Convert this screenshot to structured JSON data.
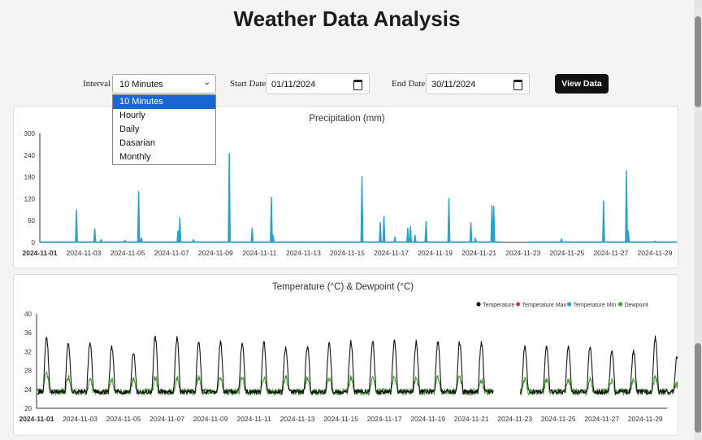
{
  "page": {
    "title": "Weather Data Analysis"
  },
  "controls": {
    "interval_label": "Interval",
    "interval_value": "10 Minutes",
    "interval_options": [
      "10 Minutes",
      "Hourly",
      "Daily",
      "Dasarian",
      "Monthly"
    ],
    "start_label": "Start Date",
    "start_value": "01/11/2024",
    "end_label": "End Date",
    "end_value": "30/11/2024",
    "view_button": "View Data"
  },
  "chart_data": [
    {
      "type": "bar",
      "title": "Precipitation (mm)",
      "color": "#2aa3c8",
      "ylim": [
        0,
        300
      ],
      "yticks": [
        0,
        60,
        120,
        180,
        240,
        300
      ],
      "xticks": [
        "2024-11-01",
        "2024-11-03",
        "2024-11-05",
        "2024-11-07",
        "2024-11-09",
        "2024-11-11",
        "2024-11-13",
        "2024-11-15",
        "2024-11-17",
        "2024-11-19",
        "2024-11-21",
        "2024-11-23",
        "2024-11-25",
        "2024-11-27",
        "2024-11-29"
      ],
      "x_start": "2024-11-01",
      "x_end": "2024-11-30",
      "gap": [
        "2024-11-22T00:00",
        "2024-11-23T06:00"
      ],
      "spikes": [
        {
          "t": "2024-11-02T16:00",
          "v": 90
        },
        {
          "t": "2024-11-03T12:00",
          "v": 38
        },
        {
          "t": "2024-11-03T19:00",
          "v": 8
        },
        {
          "t": "2024-11-04T21:00",
          "v": 6
        },
        {
          "t": "2024-11-05T12:00",
          "v": 140
        },
        {
          "t": "2024-11-05T15:00",
          "v": 12
        },
        {
          "t": "2024-11-07T07:00",
          "v": 32
        },
        {
          "t": "2024-11-07T09:00",
          "v": 68
        },
        {
          "t": "2024-11-08T00:00",
          "v": 8
        },
        {
          "t": "2024-11-09T15:00",
          "v": 245
        },
        {
          "t": "2024-11-10T16:00",
          "v": 40
        },
        {
          "t": "2024-11-11T13:00",
          "v": 125
        },
        {
          "t": "2024-11-11T15:00",
          "v": 20
        },
        {
          "t": "2024-11-15T16:00",
          "v": 182
        },
        {
          "t": "2024-11-16T12:00",
          "v": 55
        },
        {
          "t": "2024-11-16T16:00",
          "v": 72
        },
        {
          "t": "2024-11-17T04:00",
          "v": 15
        },
        {
          "t": "2024-11-17T18:00",
          "v": 40
        },
        {
          "t": "2024-11-17T21:00",
          "v": 45
        },
        {
          "t": "2024-11-18T02:00",
          "v": 20
        },
        {
          "t": "2024-11-18T14:00",
          "v": 58
        },
        {
          "t": "2024-11-19T15:00",
          "v": 122
        },
        {
          "t": "2024-11-20T15:00",
          "v": 55
        },
        {
          "t": "2024-11-20T20:00",
          "v": 12
        },
        {
          "t": "2024-11-21T14:00",
          "v": 102
        },
        {
          "t": "2024-11-21T16:00",
          "v": 100
        },
        {
          "t": "2024-11-24T18:00",
          "v": 10
        },
        {
          "t": "2024-11-26T16:00",
          "v": 115
        },
        {
          "t": "2024-11-27T17:00",
          "v": 198
        },
        {
          "t": "2024-11-27T19:00",
          "v": 32
        },
        {
          "t": "2024-11-29T00:00",
          "v": 4
        }
      ]
    },
    {
      "type": "line",
      "title": "Temperature (°C) & Dewpoint (°C)",
      "ylim": [
        20,
        40
      ],
      "yticks": [
        20,
        24,
        28,
        32,
        36,
        40
      ],
      "xticks": [
        "2024-11-01",
        "2024-11-03",
        "2024-11-05",
        "2024-11-07",
        "2024-11-09",
        "2024-11-11",
        "2024-11-13",
        "2024-11-15",
        "2024-11-17",
        "2024-11-19",
        "2024-11-21",
        "2024-11-23",
        "2024-11-25",
        "2024-11-27",
        "2024-11-29"
      ],
      "x_start": "2024-11-01",
      "x_end": "2024-11-30",
      "gap": [
        "2024-11-22T00:00",
        "2024-11-23T06:00"
      ],
      "legend_position": "top-right",
      "series": [
        {
          "name": "Temperature",
          "color": "#111111",
          "night_value": 23.5,
          "daily_max": [
            35,
            34,
            34,
            33,
            32,
            35,
            35,
            34,
            34,
            34,
            34,
            33,
            33,
            34,
            34,
            34,
            34,
            34,
            34,
            34,
            34,
            0,
            33,
            33,
            33,
            33,
            32,
            32,
            35,
            31
          ]
        },
        {
          "name": "Temperature Max",
          "color": "#e23a3a"
        },
        {
          "name": "Temperature Min",
          "color": "#2a9fd6"
        },
        {
          "name": "Dewpoint",
          "color": "#4c9a3c",
          "night_value": 23.5,
          "daily_max": [
            27.5,
            26.5,
            26,
            26,
            26,
            26.5,
            26.5,
            26.5,
            26.5,
            26.5,
            26.5,
            26.5,
            26.5,
            26.5,
            26.5,
            26.5,
            26.5,
            26.5,
            26.5,
            26.5,
            26,
            0,
            26,
            26,
            26,
            26,
            26,
            26,
            26.5,
            25
          ]
        }
      ]
    }
  ]
}
